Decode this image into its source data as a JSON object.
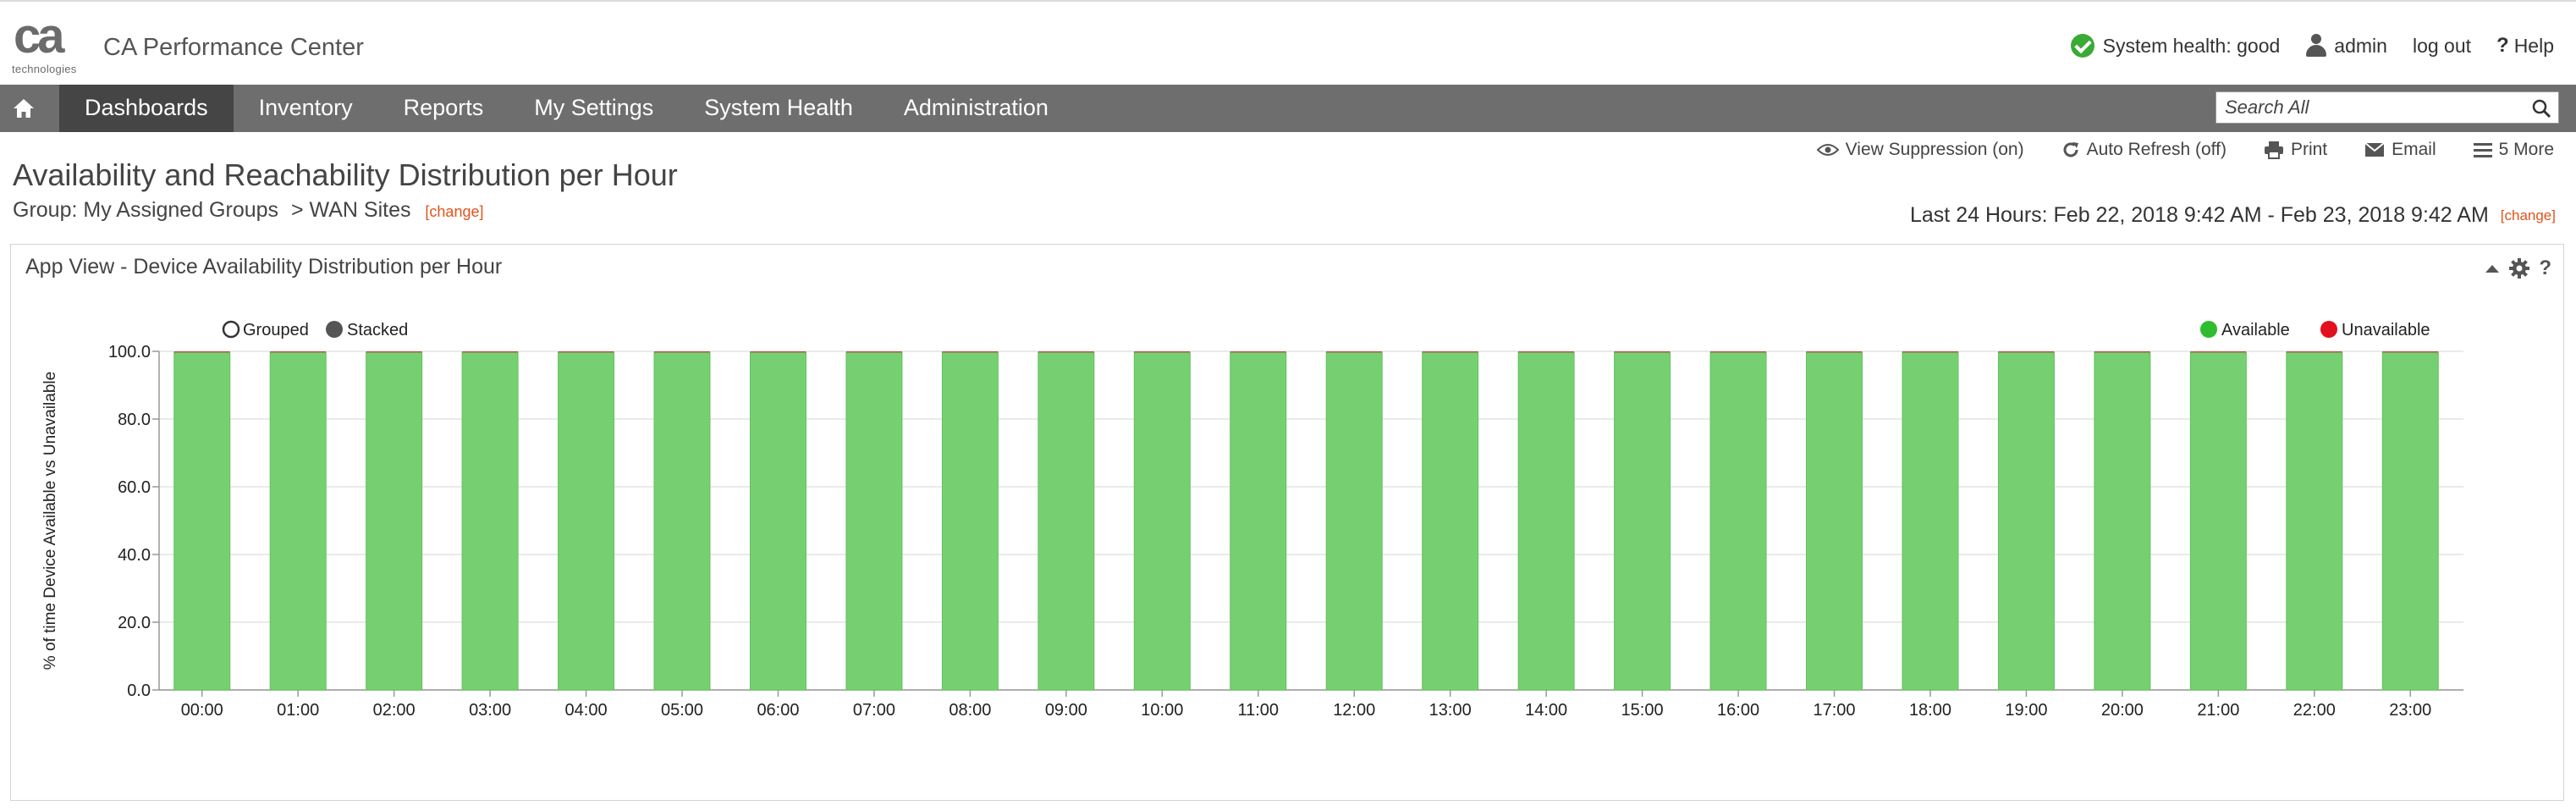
{
  "logo": {
    "text": "ca",
    "subtext": "technologies"
  },
  "app_title": "CA Performance Center",
  "top_links": {
    "system_health": "System health: good",
    "user": "admin",
    "logout": "log out",
    "help": "Help"
  },
  "nav": {
    "items": [
      {
        "label": "Dashboards",
        "active": true
      },
      {
        "label": "Inventory",
        "active": false
      },
      {
        "label": "Reports",
        "active": false
      },
      {
        "label": "My Settings",
        "active": false
      },
      {
        "label": "System Health",
        "active": false
      },
      {
        "label": "Administration",
        "active": false
      }
    ],
    "search_placeholder": "Search All"
  },
  "page": {
    "title": "Availability and Reachability Distribution per Hour",
    "group_label": "Group: My Assigned Groups",
    "group_path": "> WAN Sites",
    "change": "[change]",
    "time_range": "Last 24 Hours: Feb 22, 2018 9:42 AM - Feb 23, 2018 9:42 AM",
    "time_change": "[change]"
  },
  "toolbar": {
    "view_suppression": "View Suppression (on)",
    "auto_refresh": "Auto Refresh (off)",
    "print": "Print",
    "email": "Email",
    "more": "5 More"
  },
  "panel": {
    "title": "App View - Device Availability Distribution per Hour",
    "mode_grouped": "Grouped",
    "mode_stacked": "Stacked",
    "selected_mode": "stacked"
  },
  "colors": {
    "available": "#2ebd2e",
    "unavailable": "#e3101d",
    "bar_fill": "#76d071",
    "nav_bg": "#6e6e6e",
    "nav_active": "#454545",
    "link_orange": "#e0531c"
  },
  "chart_data": {
    "type": "bar",
    "stacked": true,
    "categories": [
      "00:00",
      "01:00",
      "02:00",
      "03:00",
      "04:00",
      "05:00",
      "06:00",
      "07:00",
      "08:00",
      "09:00",
      "10:00",
      "11:00",
      "12:00",
      "13:00",
      "14:00",
      "15:00",
      "16:00",
      "17:00",
      "18:00",
      "19:00",
      "20:00",
      "21:00",
      "22:00",
      "23:00"
    ],
    "series": [
      {
        "name": "Available",
        "values": [
          99.7,
          99.7,
          99.7,
          99.7,
          99.7,
          99.7,
          99.7,
          99.7,
          99.7,
          99.7,
          99.7,
          99.7,
          99.7,
          99.7,
          99.7,
          99.7,
          99.7,
          99.7,
          99.7,
          99.7,
          99.7,
          99.7,
          99.7,
          99.7
        ]
      },
      {
        "name": "Unavailable",
        "values": [
          0.3,
          0.3,
          0.3,
          0.3,
          0.3,
          0.3,
          0.3,
          0.3,
          0.3,
          0.3,
          0.3,
          0.3,
          0.3,
          0.3,
          0.3,
          0.3,
          0.3,
          0.3,
          0.3,
          0.3,
          0.3,
          0.3,
          0.3,
          0.3
        ]
      }
    ],
    "ylabel": "% of time Device Available vs Unavailable",
    "xlabel": "",
    "ylim": [
      0,
      100
    ],
    "yticks": [
      "0.0",
      "20.0",
      "40.0",
      "60.0",
      "80.0",
      "100.0"
    ],
    "grid": true,
    "legend_position": "top-right"
  }
}
